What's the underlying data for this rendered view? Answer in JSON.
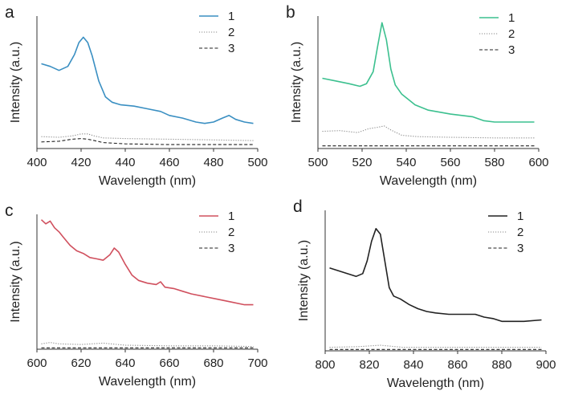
{
  "chart_data": [
    {
      "type": "line",
      "panel_label": "a",
      "xlabel": "Wavelength (nm)",
      "ylabel": "Intensity (a.u.)",
      "xlim": [
        400,
        500
      ],
      "ylim": [
        0,
        100
      ],
      "xticks": [
        400,
        420,
        440,
        460,
        480,
        500
      ],
      "legend_position": "top-right",
      "series": [
        {
          "name": "1",
          "color": "#3a8fc2",
          "dash": "solid",
          "x": [
            402,
            406,
            410,
            414,
            417,
            419,
            421,
            423,
            425,
            428,
            431,
            434,
            438,
            444,
            450,
            456,
            460,
            466,
            472,
            476,
            480,
            484,
            487,
            490,
            494,
            498
          ],
          "y": [
            64,
            62,
            59,
            62,
            71,
            80,
            84,
            80,
            70,
            51,
            39,
            35,
            33,
            32,
            30,
            28,
            25,
            23,
            20,
            19,
            20,
            23,
            25,
            22,
            20,
            19
          ]
        },
        {
          "name": "2",
          "color": "#888888",
          "dash": "dot",
          "x": [
            402,
            410,
            416,
            420,
            423,
            426,
            430,
            440,
            460,
            480,
            498
          ],
          "y": [
            9,
            8.5,
            9.5,
            11,
            11,
            9.5,
            8,
            7.5,
            7,
            6.5,
            6
          ]
        },
        {
          "name": "3",
          "color": "#222222",
          "dash": "dash",
          "x": [
            402,
            410,
            416,
            420,
            423,
            426,
            430,
            440,
            460,
            480,
            498
          ],
          "y": [
            5,
            5.5,
            7,
            7.5,
            7,
            6,
            4.5,
            3.5,
            3,
            3,
            3
          ]
        }
      ]
    },
    {
      "type": "line",
      "panel_label": "b",
      "xlabel": "Wavelength (nm)",
      "ylabel": "Intensity (a.u.)",
      "xlim": [
        500,
        600
      ],
      "ylim": [
        0,
        100
      ],
      "xticks": [
        500,
        520,
        540,
        560,
        580,
        600
      ],
      "legend_position": "top-right",
      "series": [
        {
          "name": "1",
          "color": "#3cc08f",
          "dash": "solid",
          "x": [
            502,
            508,
            514,
            519,
            522,
            525,
            527,
            529,
            531,
            533,
            535,
            538,
            541,
            544,
            550,
            560,
            570,
            575,
            580,
            590,
            598
          ],
          "y": [
            53,
            51,
            49,
            47,
            49,
            58,
            77,
            95,
            82,
            60,
            48,
            41,
            37,
            33,
            29,
            26,
            24,
            21,
            20,
            20,
            20
          ]
        },
        {
          "name": "2",
          "color": "#888888",
          "dash": "dot",
          "x": [
            502,
            510,
            518,
            523,
            527,
            530,
            533,
            538,
            545,
            560,
            580,
            598
          ],
          "y": [
            13,
            13.5,
            12,
            15,
            16,
            17,
            14,
            10,
            9,
            8.5,
            8,
            8
          ]
        },
        {
          "name": "3",
          "color": "#222222",
          "dash": "dash",
          "x": [
            502,
            540,
            598
          ],
          "y": [
            2,
            2,
            2
          ]
        }
      ]
    },
    {
      "type": "line",
      "panel_label": "c",
      "xlabel": "Wavelength (nm)",
      "ylabel": "Intensity (a.u.)",
      "xlim": [
        600,
        700
      ],
      "ylim": [
        0,
        100
      ],
      "xticks": [
        600,
        620,
        640,
        660,
        680,
        700
      ],
      "legend_position": "top-right",
      "series": [
        {
          "name": "1",
          "color": "#d0505e",
          "dash": "solid",
          "x": [
            602,
            604,
            606,
            608,
            610,
            612,
            615,
            618,
            621,
            624,
            627,
            630,
            633,
            635,
            637,
            640,
            643,
            646,
            650,
            654,
            656,
            658,
            662,
            666,
            670,
            676,
            682,
            688,
            694,
            698
          ],
          "y": [
            96,
            93,
            95,
            90,
            87,
            83,
            77,
            73,
            71,
            68,
            67,
            66,
            70,
            75,
            72,
            63,
            55,
            51,
            49,
            48,
            50,
            46,
            45,
            43,
            41,
            39,
            37,
            35,
            33,
            33
          ]
        },
        {
          "name": "2",
          "color": "#888888",
          "dash": "dot",
          "x": [
            602,
            606,
            610,
            620,
            630,
            640,
            660,
            680,
            698
          ],
          "y": [
            4,
            5,
            4,
            3.5,
            4.5,
            3,
            2.5,
            2.5,
            2
          ]
        },
        {
          "name": "3",
          "color": "#222222",
          "dash": "dash",
          "x": [
            602,
            650,
            698
          ],
          "y": [
            1,
            1,
            1
          ]
        }
      ]
    },
    {
      "type": "line",
      "panel_label": "d",
      "xlabel": "Wavelength (nm)",
      "ylabel": "Intensity (a.u.)",
      "xlim": [
        800,
        900
      ],
      "ylim": [
        0,
        100
      ],
      "xticks": [
        800,
        820,
        840,
        860,
        880,
        900
      ],
      "legend_position": "top-right",
      "series": [
        {
          "name": "1",
          "color": "#222222",
          "dash": "solid",
          "x": [
            802,
            806,
            810,
            814,
            817,
            819,
            821,
            823,
            825,
            827,
            829,
            831,
            834,
            838,
            842,
            846,
            850,
            856,
            862,
            868,
            872,
            876,
            880,
            884,
            890,
            898
          ],
          "y": [
            59,
            57,
            55,
            53,
            55,
            64,
            78,
            87,
            83,
            64,
            45,
            39,
            37,
            33,
            30,
            28,
            27,
            26,
            26,
            26,
            24,
            23,
            21,
            21,
            21,
            22
          ]
        },
        {
          "name": "2",
          "color": "#888888",
          "dash": "dot",
          "x": [
            802,
            815,
            825,
            835,
            850,
            870,
            898
          ],
          "y": [
            2.5,
            3,
            4,
            2.5,
            2.5,
            2.5,
            2.5
          ]
        },
        {
          "name": "3",
          "color": "#222222",
          "dash": "dash",
          "x": [
            802,
            850,
            898
          ],
          "y": [
            1,
            1,
            1
          ]
        }
      ]
    }
  ]
}
